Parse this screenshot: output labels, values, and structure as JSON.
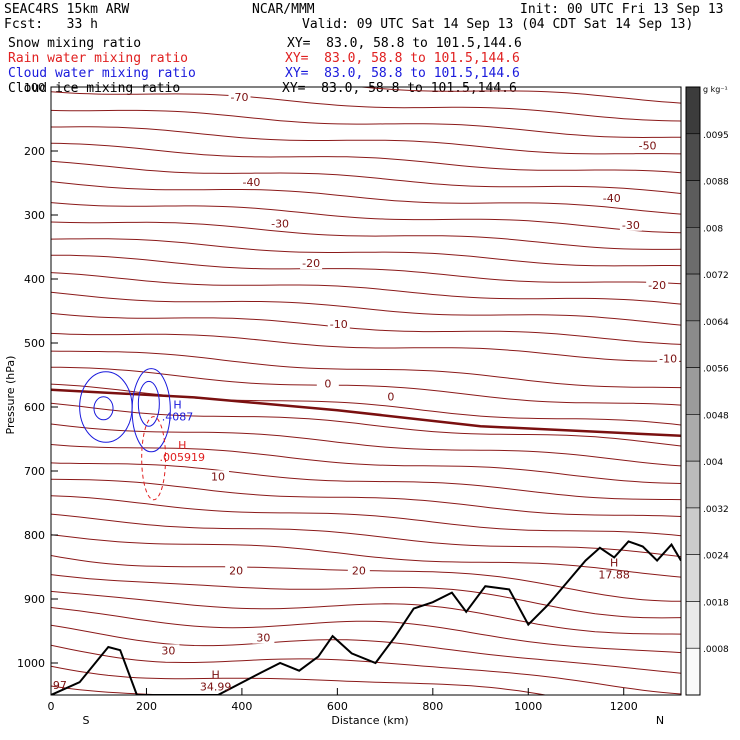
{
  "header": {
    "model": "SEAC4RS 15km ARW",
    "org": "NCAR/MMM",
    "init": "Init: 00 UTC Fri 13 Sep 13",
    "fcst": "Fcst:   33 h",
    "valid": "Valid: 09 UTC Sat 14 Sep 13 (04 CDT Sat 14 Sep 13)"
  },
  "fields": [
    {
      "label": "Snow mixing ratio",
      "xy": "XY=  83.0, 58.8 to 101.5,144.6",
      "color": "#000000"
    },
    {
      "label": "Rain water mixing ratio",
      "xy": "XY=  83.0, 58.8 to 101.5,144.6",
      "color": "#e02020"
    },
    {
      "label": "Cloud water mixing ratio",
      "xy": "XY=  83.0, 58.8 to 101.5,144.6",
      "color": "#1a1adc"
    },
    {
      "label": "Cloud ice mixing ratio",
      "xy": "XY=  83.0, 58.8 to 101.5,144.6",
      "color": "#000000"
    }
  ],
  "chart_data": {
    "type": "cross-section",
    "xlabel": "Distance (km)",
    "ylabel": "Pressure (hPa)",
    "xlim": [
      0,
      1320
    ],
    "ylim": [
      1050,
      100
    ],
    "x_ticks": [
      0,
      200,
      400,
      600,
      800,
      1000,
      1200
    ],
    "y_ticks": [
      100,
      200,
      300,
      400,
      500,
      600,
      700,
      800,
      900,
      1000
    ],
    "x_tick_labels": [
      "0",
      "200",
      "400",
      "600",
      "800",
      "1000",
      "1200"
    ],
    "y_tick_labels": [
      "100",
      "200",
      "300",
      "400",
      "500",
      "600",
      "700",
      "800",
      "900",
      "1000"
    ],
    "endpoints": {
      "left": "S",
      "right": "N"
    },
    "colorbar": {
      "unit": "g kg⁻¹",
      "labels": [
        ".0095",
        ".0088",
        ".008",
        ".0072",
        ".0064",
        ".0056",
        ".0048",
        ".004",
        ".0032",
        ".0024",
        ".0018",
        ".0008"
      ]
    },
    "temperature_contour_labels": [
      {
        "x": 395,
        "p": 120,
        "text": "-70"
      },
      {
        "x": 1250,
        "p": 196,
        "text": "-50"
      },
      {
        "x": 420,
        "p": 253,
        "text": "-40"
      },
      {
        "x": 1175,
        "p": 278,
        "text": "-40"
      },
      {
        "x": 480,
        "p": 318,
        "text": "-30"
      },
      {
        "x": 1215,
        "p": 320,
        "text": "-30"
      },
      {
        "x": 545,
        "p": 380,
        "text": "-20"
      },
      {
        "x": 1270,
        "p": 414,
        "text": "-20"
      },
      {
        "x": 603,
        "p": 475,
        "text": "-10"
      },
      {
        "x": 1293,
        "p": 529,
        "text": "-10"
      },
      {
        "x": 580,
        "p": 568,
        "text": "0"
      },
      {
        "x": 712,
        "p": 588,
        "text": "0"
      },
      {
        "x": 350,
        "p": 713,
        "text": "10"
      },
      {
        "x": 388,
        "p": 860,
        "text": "20"
      },
      {
        "x": 645,
        "p": 860,
        "text": "20"
      },
      {
        "x": 246,
        "p": 985,
        "text": "30"
      },
      {
        "x": 445,
        "p": 965,
        "text": "30"
      }
    ],
    "extrema": [
      {
        "x": 265,
        "p": 618,
        "kind": "H",
        "value": ".4087",
        "color": "#1a1adc"
      },
      {
        "x": 275,
        "p": 681,
        "kind": "H",
        "value": ".005919",
        "color": "#e02020"
      },
      {
        "x": 345,
        "p": 1040,
        "kind": "H",
        "value": "34.99",
        "color": "#7a1010"
      },
      {
        "x": 1180,
        "p": 865,
        "kind": "H",
        "value": "17.88",
        "color": "#7a1010"
      }
    ],
    "corner_value": {
      "x": 4,
      "p": 1050,
      "text": "97"
    },
    "freezing_level_hPa": [
      [
        0,
        573
      ],
      [
        300,
        585
      ],
      [
        600,
        605
      ],
      [
        900,
        630
      ],
      [
        1320,
        645
      ]
    ],
    "terrain_hPa": [
      [
        0,
        1050
      ],
      [
        60,
        1030
      ],
      [
        120,
        975
      ],
      [
        145,
        980
      ],
      [
        180,
        1050
      ],
      [
        300,
        1050
      ],
      [
        350,
        1050
      ],
      [
        440,
        1015
      ],
      [
        480,
        1000
      ],
      [
        520,
        1012
      ],
      [
        560,
        990
      ],
      [
        590,
        958
      ],
      [
        630,
        985
      ],
      [
        680,
        1000
      ],
      [
        720,
        960
      ],
      [
        760,
        915
      ],
      [
        800,
        905
      ],
      [
        840,
        890
      ],
      [
        870,
        920
      ],
      [
        910,
        880
      ],
      [
        960,
        885
      ],
      [
        1000,
        940
      ],
      [
        1040,
        910
      ],
      [
        1080,
        875
      ],
      [
        1120,
        840
      ],
      [
        1150,
        820
      ],
      [
        1180,
        835
      ],
      [
        1210,
        810
      ],
      [
        1240,
        818
      ],
      [
        1270,
        840
      ],
      [
        1300,
        815
      ],
      [
        1320,
        840
      ]
    ]
  }
}
